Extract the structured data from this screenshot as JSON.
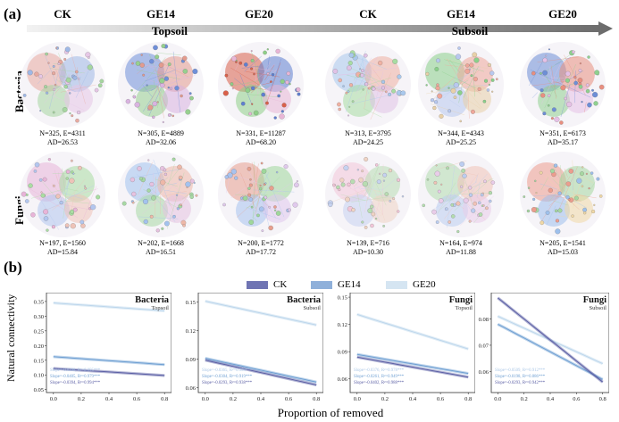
{
  "panel_a": {
    "label": "(a)",
    "columns": [
      "CK",
      "GE14",
      "GE20",
      "CK",
      "GE14",
      "GE20"
    ],
    "soils": [
      "Topsoil",
      "Subsoil"
    ],
    "rows": [
      "Bacteria",
      "Fungi"
    ],
    "networks": [
      {
        "row": "Bacteria",
        "col": "CK",
        "soil": "Topsoil",
        "line1": "N=325, E=4311",
        "line2": "AD=26.53",
        "clusters": [
          "#e8a9a0",
          "#9fb8e6",
          "#a6d6a0",
          "#e6c7e6"
        ]
      },
      {
        "row": "Bacteria",
        "col": "GE14",
        "soil": "Topsoil",
        "line1": "N=305, E=4889",
        "line2": "AD=32.06",
        "clusters": [
          "#6f8fd8",
          "#e39b8e",
          "#97cf8f",
          "#d9b3e0"
        ]
      },
      {
        "row": "Bacteria",
        "col": "GE20",
        "soil": "Topsoil",
        "line1": "N=331, E=11287",
        "line2": "AD=68.20",
        "clusters": [
          "#d9604a",
          "#5f7fd0",
          "#8fcf88",
          "#e8b6d6"
        ]
      },
      {
        "row": "Bacteria",
        "col": "CK",
        "soil": "Subsoil",
        "line1": "N=313, E=3795",
        "line2": "AD=24.25",
        "clusters": [
          "#a9c8ec",
          "#efb1a3",
          "#a8dca2",
          "#e0c2e6"
        ]
      },
      {
        "row": "Bacteria",
        "col": "GE14",
        "soil": "Subsoil",
        "line1": "N=344, E=4343",
        "line2": "AD=25.25",
        "clusters": [
          "#8ad08a",
          "#efa79a",
          "#b8c8ef",
          "#e8d0a8"
        ]
      },
      {
        "row": "Bacteria",
        "col": "GE20",
        "soil": "Subsoil",
        "line1": "N=351, E=6173",
        "line2": "AD=35.17",
        "clusters": [
          "#6d8ed6",
          "#e88f80",
          "#8fd08f",
          "#e6c1e6"
        ]
      },
      {
        "row": "Fungi",
        "col": "CK",
        "soil": "Topsoil",
        "line1": "N=197, E=1560",
        "line2": "AD=15.84",
        "clusters": [
          "#e8b4d8",
          "#a9dda2",
          "#b3c6ef",
          "#eec3b8"
        ]
      },
      {
        "row": "Fungi",
        "col": "GE14",
        "soil": "Topsoil",
        "line1": "N=202, E=1668",
        "line2": "AD=16.51",
        "clusters": [
          "#a3c2ee",
          "#eeb8a8",
          "#a7d8a4",
          "#e6c2e0"
        ]
      },
      {
        "row": "Fungi",
        "col": "GE20",
        "soil": "Topsoil",
        "line1": "N=200, E=1772",
        "line2": "AD=17.72",
        "clusters": [
          "#e79f8e",
          "#9ed79b",
          "#a8c2ee",
          "#e0c9ec"
        ]
      },
      {
        "row": "Fungi",
        "col": "CK",
        "soil": "Subsoil",
        "line1": "N=139, E=716",
        "line2": "AD=10.30",
        "clusters": [
          "#f2c6d8",
          "#b8dcb2",
          "#c6d2f0",
          "#efd3c4"
        ]
      },
      {
        "row": "Fungi",
        "col": "GE14",
        "soil": "Subsoil",
        "line1": "N=164, E=974",
        "line2": "AD=11.88",
        "clusters": [
          "#b3dcae",
          "#f0c2b6",
          "#bccdf0",
          "#e9cce9"
        ]
      },
      {
        "row": "Fungi",
        "col": "GE20",
        "soil": "Subsoil",
        "line1": "N=205, E=1541",
        "line2": "AD=15.03",
        "clusters": [
          "#ec9d8e",
          "#a6d7a1",
          "#9ec0ec",
          "#f0d8a6"
        ]
      }
    ]
  },
  "panel_b": {
    "label": "(b)",
    "legend": [
      {
        "name": "CK",
        "color": "#6f74b3"
      },
      {
        "name": "GE14",
        "color": "#8fb0da"
      },
      {
        "name": "GE20",
        "color": "#d5e5f2"
      }
    ],
    "y_label": "Natural connectivity",
    "x_label": "Proportion of removed"
  },
  "chart_data": [
    {
      "type": "line",
      "title": "Bacteria",
      "subtitle": "Topsoil",
      "xlim": [
        -0.05,
        0.85
      ],
      "ylim": [
        0.04,
        0.38
      ],
      "x_ticks": [
        0.0,
        0.2,
        0.4,
        0.6,
        0.8
      ],
      "y_ticks": [
        0.05,
        0.1,
        0.15,
        0.2,
        0.25,
        0.3,
        0.35
      ],
      "y_tick_labels": [
        "0.05",
        "0.10",
        "0.15",
        "0.20",
        "0.25",
        "0.30",
        "0.35"
      ],
      "series": [
        {
          "name": "GE20",
          "start": 0.345,
          "end": 0.318,
          "color": "#bcd6ec"
        },
        {
          "name": "GE14",
          "start": 0.162,
          "end": 0.135,
          "color": "#6e9fd2"
        },
        {
          "name": "CK",
          "start": 0.122,
          "end": 0.098,
          "color": "#5b5fa5"
        }
      ],
      "annotations": [
        "Slope=-0.0398, R²=0.895***",
        "Slope=-0.0405, R²=0.979***",
        "Slope=-0.0394, R²=0.994***"
      ]
    },
    {
      "type": "line",
      "title": "Bacteria",
      "subtitle": "Subsoil",
      "xlim": [
        -0.05,
        0.85
      ],
      "ylim": [
        0.055,
        0.16
      ],
      "x_ticks": [
        0.0,
        0.2,
        0.4,
        0.6,
        0.8
      ],
      "y_ticks": [
        0.06,
        0.09,
        0.12,
        0.15
      ],
      "y_tick_labels": [
        "0.06",
        "0.09",
        "0.12",
        "0.15"
      ],
      "series": [
        {
          "name": "GE20",
          "start": 0.151,
          "end": 0.126,
          "color": "#bcd6ec"
        },
        {
          "name": "GE14",
          "start": 0.091,
          "end": 0.066,
          "color": "#6e9fd2"
        },
        {
          "name": "CK",
          "start": 0.089,
          "end": 0.063,
          "color": "#5b5fa5"
        }
      ],
      "annotations": [
        "Slope=-0.0365, R²=0.908***",
        "Slope=-0.0304, R²=0.919***",
        "Slope=-0.0293, R²=0.938***"
      ]
    },
    {
      "type": "line",
      "title": "Fungi",
      "subtitle": "Topsoil",
      "xlim": [
        -0.05,
        0.85
      ],
      "ylim": [
        0.045,
        0.155
      ],
      "x_ticks": [
        0.0,
        0.2,
        0.4,
        0.6,
        0.8
      ],
      "y_ticks": [
        0.06,
        0.09,
        0.12,
        0.15
      ],
      "y_tick_labels": [
        "0.06",
        "0.09",
        "0.12",
        "0.15"
      ],
      "series": [
        {
          "name": "GE20",
          "start": 0.131,
          "end": 0.093,
          "color": "#bcd6ec"
        },
        {
          "name": "GE14",
          "start": 0.087,
          "end": 0.066,
          "color": "#6e9fd2"
        },
        {
          "name": "CK",
          "start": 0.084,
          "end": 0.062,
          "color": "#5b5fa5"
        }
      ],
      "annotations": [
        "Slope=-0.0376, R²=0.978***",
        "Slope=-0.0261, R²=0.949***",
        "Slope=-0.0402, R²=0.988***"
      ]
    },
    {
      "type": "line",
      "title": "Fungi",
      "subtitle": "Subsoil",
      "xlim": [
        -0.05,
        0.85
      ],
      "ylim": [
        0.052,
        0.09
      ],
      "x_ticks": [
        0.0,
        0.2,
        0.4,
        0.6,
        0.8
      ],
      "y_ticks": [
        0.06,
        0.07,
        0.08
      ],
      "y_tick_labels": [
        "0.06",
        "0.07",
        "0.08"
      ],
      "series": [
        {
          "name": "GE20",
          "start": 0.081,
          "end": 0.063,
          "color": "#bcd6ec"
        },
        {
          "name": "GE14",
          "start": 0.078,
          "end": 0.057,
          "color": "#6e9fd2"
        },
        {
          "name": "CK",
          "start": 0.088,
          "end": 0.056,
          "color": "#5b5fa5"
        }
      ],
      "annotations": [
        "Slope=-0.0509, R²=0.912***",
        "Slope=-0.0198, R²=0.886***",
        "Slope=-0.0293, R²=0.942***"
      ]
    }
  ]
}
